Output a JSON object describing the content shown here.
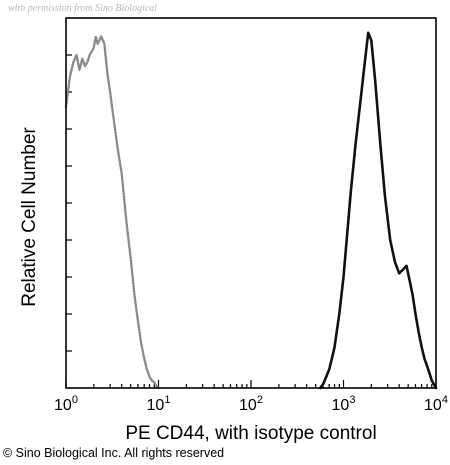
{
  "watermark": "with permission from Sino Biological",
  "copyright": "© Sino Biological Inc. All rights reserved",
  "chart_data": {
    "type": "line",
    "title": "",
    "xlabel": "PE CD44, with isotype control",
    "ylabel": "Relative Cell Number",
    "xscale": "log",
    "xlim": [
      1,
      10000
    ],
    "ylim": [
      0,
      100
    ],
    "grid": false,
    "xticks": [
      {
        "value": 1,
        "base": "10",
        "exp": "0"
      },
      {
        "value": 10,
        "base": "10",
        "exp": "1"
      },
      {
        "value": 100,
        "base": "10",
        "exp": "2"
      },
      {
        "value": 1000,
        "base": "10",
        "exp": "3"
      },
      {
        "value": 10000,
        "base": "10",
        "exp": "4"
      }
    ],
    "series": [
      {
        "role": "isotype-control",
        "color": "#8a8a8a",
        "style": "dotted",
        "x": [
          1.0,
          1.05,
          1.1,
          1.15,
          1.2,
          1.3,
          1.4,
          1.5,
          1.6,
          1.7,
          1.8,
          1.9,
          2.0,
          2.1,
          2.2,
          2.4,
          2.6,
          2.8,
          3.0,
          3.3,
          3.6,
          4.0,
          4.5,
          5.0,
          5.5,
          6.0,
          6.5,
          7.0,
          7.5,
          8.0,
          8.5,
          9.0,
          9.5,
          10.0
        ],
        "y": [
          76,
          80,
          84,
          86,
          88,
          90,
          86,
          89,
          87,
          88,
          90,
          91,
          92,
          95,
          93,
          95,
          93,
          85,
          80,
          72,
          65,
          58,
          45,
          35,
          25,
          18,
          12,
          8,
          5,
          3,
          2,
          1.5,
          0.5,
          0
        ]
      },
      {
        "role": "CD44",
        "color": "#111111",
        "style": "solid",
        "x": [
          560,
          600,
          650,
          700,
          750,
          800,
          900,
          1000,
          1100,
          1200,
          1350,
          1500,
          1700,
          1850,
          2000,
          2200,
          2500,
          2800,
          3200,
          3600,
          4000,
          4400,
          4800,
          5200,
          5600,
          6000,
          6500,
          7000,
          7500,
          8000,
          8500,
          9000,
          10000
        ],
        "y": [
          0,
          1,
          3,
          5,
          8,
          11,
          20,
          30,
          42,
          53,
          66,
          76,
          88,
          96,
          94,
          83,
          66,
          52,
          40,
          34,
          31,
          32,
          33,
          29,
          25,
          20,
          15,
          11,
          8,
          6,
          4,
          2,
          0
        ]
      }
    ]
  }
}
